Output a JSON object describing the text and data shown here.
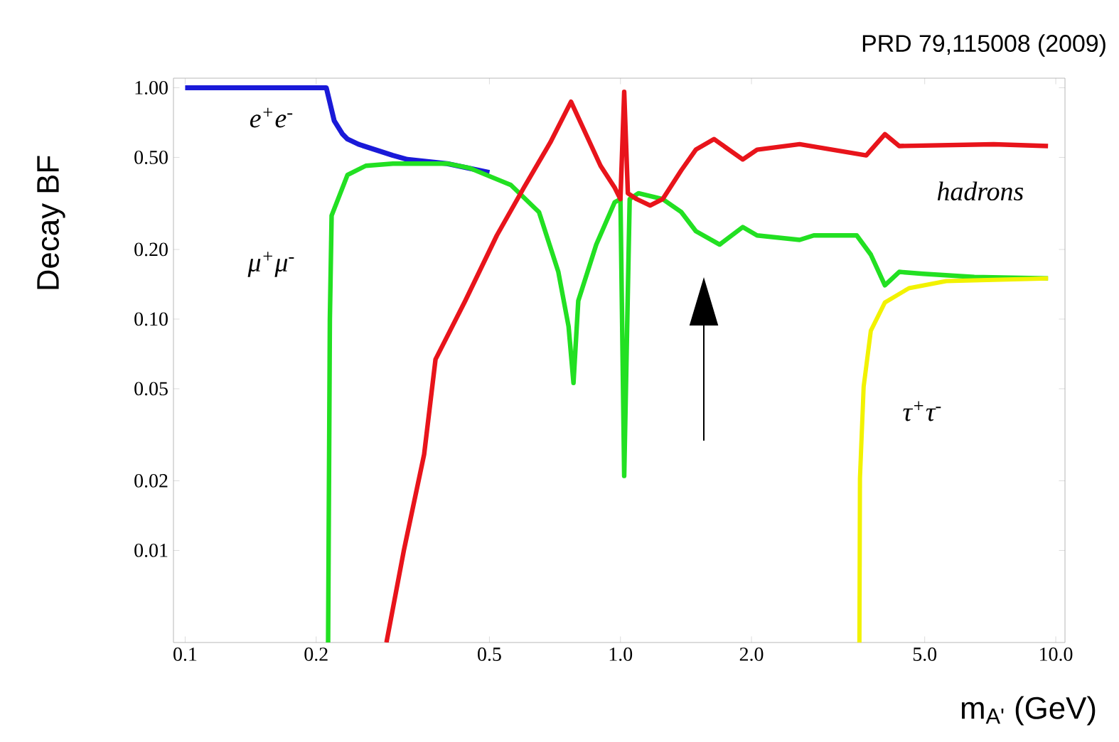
{
  "chart_data": {
    "type": "line",
    "log": "xy",
    "grid": false,
    "legend": false,
    "xlabel": "m$_{A'}$ (GeV)",
    "ylabel": "Decay BF",
    "annotations": [
      "PRD 79,115008 (2009)"
    ],
    "xlim": [
      0.094,
      10.5
    ],
    "ylim": [
      0.004,
      1.1
    ],
    "xticks": [
      0.1,
      0.2,
      0.5,
      {
        "value": 1,
        "label": "1.0"
      },
      {
        "value": 2,
        "label": "2.0"
      },
      {
        "value": 5,
        "label": "5.0"
      },
      {
        "value": 10,
        "label": "10.0"
      }
    ],
    "yticks": [
      0.01,
      0.02,
      0.05,
      {
        "value": 0.1,
        "label": "0.10"
      },
      {
        "value": 0.2,
        "label": "0.20"
      },
      {
        "value": 0.5,
        "label": "0.50"
      },
      {
        "value": 1,
        "label": "1.00"
      }
    ],
    "series": [
      {
        "name": "e$^{+}$e$^{-}$",
        "color": "#1a1ad8",
        "x": [
          0.1,
          0.211,
          0.22,
          0.23,
          0.236,
          0.25,
          0.3,
          0.324,
          0.4,
          0.5
        ],
        "values": [
          1.0,
          1.0,
          0.72,
          0.63,
          0.6,
          0.57,
          0.51,
          0.49,
          0.47,
          0.43
        ]
      },
      {
        "name": "μ$^{+}$μ$^{-}$",
        "color": "#22e022",
        "x": [
          0.213,
          0.215,
          0.217,
          0.236,
          0.26,
          0.3,
          0.4,
          0.45,
          0.56,
          0.65,
          0.72,
          0.76,
          0.78,
          0.8,
          0.88,
          0.97,
          1.0,
          1.02,
          1.05,
          1.1,
          1.25,
          1.38,
          1.49,
          1.69,
          1.91,
          2.06,
          2.58,
          2.78,
          3.49,
          3.76,
          4.05,
          4.37,
          4.96,
          6.5,
          9.6
        ],
        "values": [
          0.004,
          0.1,
          0.28,
          0.42,
          0.46,
          0.47,
          0.47,
          0.45,
          0.38,
          0.29,
          0.16,
          0.093,
          0.053,
          0.12,
          0.21,
          0.32,
          0.33,
          0.021,
          0.33,
          0.35,
          0.33,
          0.29,
          0.24,
          0.21,
          0.25,
          0.23,
          0.22,
          0.23,
          0.23,
          0.19,
          0.14,
          0.16,
          0.157,
          0.152,
          0.15
        ]
      },
      {
        "name": "hadrons",
        "color": "#e8141b",
        "x": [
          0.29,
          0.318,
          0.354,
          0.376,
          0.44,
          0.52,
          0.6,
          0.69,
          0.77,
          0.9,
          0.97,
          1.0,
          1.02,
          1.04,
          1.09,
          1.17,
          1.25,
          1.38,
          1.49,
          1.64,
          1.91,
          2.06,
          2.58,
          3.67,
          4.05,
          4.37,
          7.2,
          9.6
        ],
        "values": [
          0.004,
          0.01,
          0.026,
          0.067,
          0.12,
          0.23,
          0.37,
          0.58,
          0.87,
          0.46,
          0.37,
          0.33,
          0.96,
          0.35,
          0.33,
          0.31,
          0.33,
          0.44,
          0.54,
          0.6,
          0.49,
          0.54,
          0.57,
          0.51,
          0.63,
          0.56,
          0.57,
          0.56
        ]
      },
      {
        "name": "τ$^{+}$τ$^{-}$",
        "color": "#f2f200",
        "x": [
          3.54,
          3.55,
          3.62,
          3.76,
          4.05,
          4.6,
          5.6,
          9.6
        ],
        "values": [
          0.004,
          0.0205,
          0.051,
          0.089,
          0.118,
          0.136,
          0.146,
          0.15
        ]
      }
    ]
  }
}
